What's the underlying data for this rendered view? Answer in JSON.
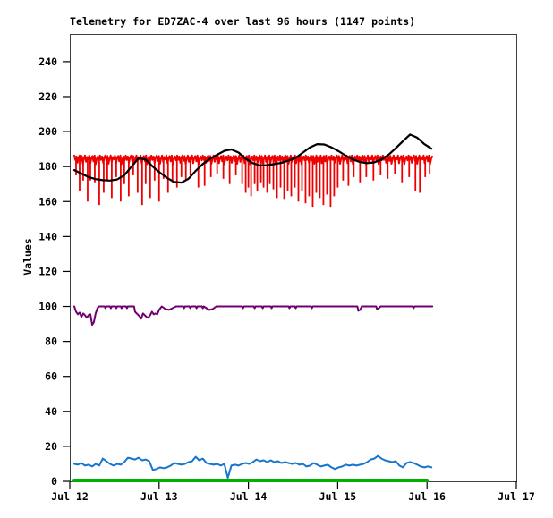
{
  "title": "Telemetry for ED7ZAC-4 over last 96 hours (1147 points)",
  "chart_data": {
    "type": "line",
    "title": "Telemetry for ED7ZAC-4 over last 96 hours (1147 points)",
    "station": "ED7ZAC-4",
    "window_hours": 96,
    "points_count": 1147,
    "xlabel": "",
    "ylabel": "Values",
    "x_tick_labels": [
      "Jul 12",
      "Jul 13",
      "Jul 14",
      "Jul 15",
      "Jul 16",
      "Jul 17"
    ],
    "y_tick_values": [
      0,
      20,
      40,
      60,
      80,
      100,
      120,
      140,
      160,
      180,
      200,
      220,
      240
    ],
    "ylim": [
      0,
      255.8
    ],
    "xlim_days": [
      0,
      5
    ],
    "grid": false,
    "legend_position": "none",
    "background_color": "#ffffff",
    "axis_color": "#404040",
    "series": [
      {
        "name": "green",
        "color": "#00b200",
        "width": 4,
        "kind": "points",
        "points": [
          [
            0.05,
            0.5
          ],
          [
            4.0,
            0.5
          ]
        ]
      },
      {
        "name": "blue",
        "color": "#1874cd",
        "width": 2,
        "kind": "sampled",
        "x0": 0.05,
        "dx": 0.04,
        "values": [
          10,
          9.5,
          10.5,
          9,
          9.5,
          8.5,
          10,
          9,
          13,
          11.5,
          10,
          9,
          10,
          9.5,
          11,
          13.5,
          13,
          12.5,
          13.5,
          12,
          12.5,
          11.5,
          6.5,
          7,
          8,
          7.5,
          8,
          9,
          10.5,
          10,
          9.5,
          10,
          11,
          11.5,
          14,
          12,
          13,
          10.5,
          10,
          9.5,
          10,
          9,
          10,
          2,
          9,
          9.5,
          9,
          10,
          10.5,
          10,
          11,
          12.5,
          11.5,
          12,
          11,
          12,
          11,
          11.5,
          10.5,
          11,
          10.5,
          10,
          10.5,
          9.5,
          10,
          8.5,
          9,
          10.5,
          9.5,
          8.5,
          9,
          9.5,
          8,
          7,
          8,
          8.5,
          9.5,
          9,
          9.5,
          9,
          9.5,
          10,
          11,
          12.5,
          13,
          14.5,
          13,
          12,
          11.5,
          11,
          11.5,
          9,
          8,
          10.5,
          11,
          10.5,
          9.5,
          8.5,
          8,
          8.5,
          8
        ]
      },
      {
        "name": "purple",
        "color": "#700070",
        "width": 2,
        "kind": "points",
        "points": [
          [
            0.05,
            100
          ],
          [
            0.07,
            97
          ],
          [
            0.09,
            95.5
          ],
          [
            0.11,
            96.5
          ],
          [
            0.13,
            94
          ],
          [
            0.15,
            96
          ],
          [
            0.17,
            95
          ],
          [
            0.19,
            93.5
          ],
          [
            0.21,
            95
          ],
          [
            0.23,
            95.5
          ],
          [
            0.25,
            89.5
          ],
          [
            0.27,
            91
          ],
          [
            0.29,
            96
          ],
          [
            0.31,
            99
          ],
          [
            0.33,
            100
          ],
          [
            0.39,
            100
          ],
          [
            0.4,
            99
          ],
          [
            0.41,
            100
          ],
          [
            0.45,
            100
          ],
          [
            0.46,
            99
          ],
          [
            0.47,
            100
          ],
          [
            0.51,
            100
          ],
          [
            0.52,
            99
          ],
          [
            0.53,
            100
          ],
          [
            0.57,
            100
          ],
          [
            0.58,
            99
          ],
          [
            0.59,
            100
          ],
          [
            0.63,
            100
          ],
          [
            0.64,
            99
          ],
          [
            0.65,
            100
          ],
          [
            0.72,
            100
          ],
          [
            0.73,
            97
          ],
          [
            0.75,
            96
          ],
          [
            0.77,
            95
          ],
          [
            0.8,
            93
          ],
          [
            0.82,
            96
          ],
          [
            0.84,
            95
          ],
          [
            0.86,
            94
          ],
          [
            0.88,
            93.5
          ],
          [
            0.9,
            95
          ],
          [
            0.92,
            97
          ],
          [
            0.94,
            95.5
          ],
          [
            0.96,
            96
          ],
          [
            0.98,
            95.5
          ],
          [
            1.0,
            98
          ],
          [
            1.03,
            100
          ],
          [
            1.07,
            98.5
          ],
          [
            1.11,
            98
          ],
          [
            1.15,
            99
          ],
          [
            1.19,
            100
          ],
          [
            1.27,
            100
          ],
          [
            1.28,
            99
          ],
          [
            1.29,
            100
          ],
          [
            1.34,
            100
          ],
          [
            1.35,
            99
          ],
          [
            1.36,
            100
          ],
          [
            1.41,
            100
          ],
          [
            1.42,
            99
          ],
          [
            1.43,
            100
          ],
          [
            1.48,
            100
          ],
          [
            1.49,
            99
          ],
          [
            1.5,
            100
          ],
          [
            1.56,
            98
          ],
          [
            1.6,
            98.5
          ],
          [
            1.64,
            100
          ],
          [
            1.93,
            100
          ],
          [
            1.94,
            99
          ],
          [
            1.95,
            100
          ],
          [
            2.06,
            100
          ],
          [
            2.07,
            99
          ],
          [
            2.08,
            100
          ],
          [
            2.15,
            100
          ],
          [
            2.16,
            99
          ],
          [
            2.17,
            100
          ],
          [
            2.25,
            100
          ],
          [
            2.26,
            99
          ],
          [
            2.27,
            100
          ],
          [
            2.45,
            100
          ],
          [
            2.46,
            99
          ],
          [
            2.47,
            100
          ],
          [
            2.52,
            100
          ],
          [
            2.53,
            99
          ],
          [
            2.54,
            100
          ],
          [
            2.7,
            100
          ],
          [
            2.71,
            99
          ],
          [
            2.72,
            100
          ],
          [
            3.22,
            100
          ],
          [
            3.23,
            97.5
          ],
          [
            3.25,
            98
          ],
          [
            3.27,
            100
          ],
          [
            3.43,
            100
          ],
          [
            3.44,
            98.5
          ],
          [
            3.46,
            99
          ],
          [
            3.48,
            100
          ],
          [
            3.84,
            100
          ],
          [
            3.85,
            99
          ],
          [
            3.86,
            100
          ],
          [
            4.06,
            100
          ]
        ]
      },
      {
        "name": "red",
        "color": "#ee0000",
        "width": 2,
        "kind": "noisy-band",
        "x0": 0.05,
        "x1": 4.06,
        "step": 0.012,
        "band_high": 186.3,
        "band_low": 180.8,
        "spike_top": 184.5,
        "jitter_pattern": [
          1,
          0.55,
          0.9,
          0.25,
          0.8,
          1,
          0.45,
          0.95,
          0.15,
          0.7,
          1,
          0.35,
          0.85,
          0.6,
          1,
          0.2,
          0.75,
          0.95,
          0.4,
          1,
          0.1,
          0.65,
          0.9,
          0.5
        ],
        "spikes": [
          [
            0.07,
            175
          ],
          [
            0.11,
            166
          ],
          [
            0.15,
            172
          ],
          [
            0.2,
            160
          ],
          [
            0.23,
            172
          ],
          [
            0.28,
            171
          ],
          [
            0.33,
            158
          ],
          [
            0.38,
            165
          ],
          [
            0.42,
            172
          ],
          [
            0.47,
            162
          ],
          [
            0.52,
            174
          ],
          [
            0.57,
            160
          ],
          [
            0.61,
            170
          ],
          [
            0.66,
            163
          ],
          [
            0.71,
            175
          ],
          [
            0.76,
            165
          ],
          [
            0.81,
            158
          ],
          [
            0.85,
            170
          ],
          [
            0.9,
            162
          ],
          [
            0.95,
            172
          ],
          [
            1.0,
            160
          ],
          [
            1.05,
            173
          ],
          [
            1.1,
            165
          ],
          [
            1.15,
            171
          ],
          [
            1.2,
            168
          ],
          [
            1.25,
            174
          ],
          [
            1.3,
            172
          ],
          [
            1.35,
            175
          ],
          [
            1.44,
            168
          ],
          [
            1.51,
            169
          ],
          [
            1.58,
            174
          ],
          [
            1.65,
            176
          ],
          [
            1.72,
            173
          ],
          [
            1.79,
            170
          ],
          [
            1.86,
            175
          ],
          [
            1.93,
            170
          ],
          [
            1.97,
            165
          ],
          [
            2.0,
            168
          ],
          [
            2.03,
            163
          ],
          [
            2.07,
            170
          ],
          [
            2.1,
            166
          ],
          [
            2.14,
            171
          ],
          [
            2.17,
            168
          ],
          [
            2.21,
            165
          ],
          [
            2.24,
            170
          ],
          [
            2.28,
            167
          ],
          [
            2.32,
            162
          ],
          [
            2.36,
            168
          ],
          [
            2.4,
            161.5
          ],
          [
            2.44,
            166
          ],
          [
            2.48,
            163
          ],
          [
            2.52,
            168
          ],
          [
            2.56,
            160
          ],
          [
            2.6,
            166
          ],
          [
            2.64,
            159
          ],
          [
            2.68,
            163
          ],
          [
            2.72,
            157
          ],
          [
            2.76,
            165
          ],
          [
            2.8,
            162
          ],
          [
            2.84,
            158
          ],
          [
            2.88,
            164
          ],
          [
            2.92,
            157
          ],
          [
            2.96,
            163
          ],
          [
            3.0,
            168
          ],
          [
            3.06,
            172
          ],
          [
            3.12,
            169
          ],
          [
            3.18,
            174
          ],
          [
            3.25,
            171
          ],
          [
            3.32,
            174
          ],
          [
            3.4,
            172
          ],
          [
            3.48,
            175
          ],
          [
            3.56,
            173
          ],
          [
            3.64,
            176
          ],
          [
            3.72,
            171
          ],
          [
            3.8,
            174
          ],
          [
            3.87,
            166
          ],
          [
            3.92,
            165
          ],
          [
            3.98,
            174
          ],
          [
            4.03,
            176
          ]
        ]
      },
      {
        "name": "black",
        "color": "#000000",
        "width": 2.2,
        "kind": "sampled",
        "x0": 0.05,
        "dx": 0.08,
        "values": [
          178,
          176,
          174,
          172.8,
          172.2,
          172,
          172.6,
          175,
          180,
          184.8,
          184,
          180,
          176.5,
          173.5,
          171.2,
          170.8,
          173,
          177.5,
          181.5,
          184.5,
          186.8,
          189,
          189.8,
          188,
          184.5,
          182,
          180.6,
          180.8,
          181.4,
          182.2,
          183.4,
          185,
          188,
          191,
          192.8,
          192.6,
          191,
          188.8,
          186.2,
          184,
          182.6,
          182,
          182.4,
          184,
          186.8,
          190.5,
          194.5,
          198.3,
          196.5,
          192.8,
          190.2
        ]
      }
    ]
  }
}
